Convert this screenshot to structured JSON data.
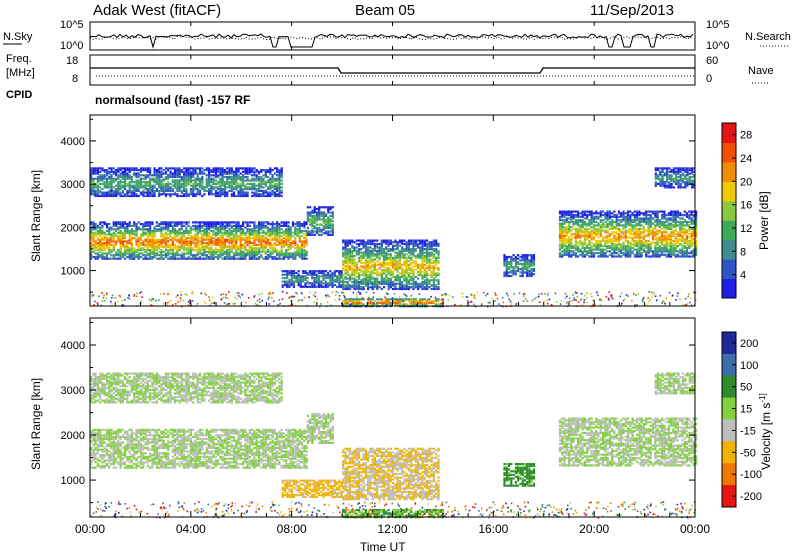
{
  "header": {
    "station": "Adak West (fitACF)",
    "beam": "Beam 05",
    "date": "11/Sep/2013"
  },
  "noise_panel": {
    "left_label": "N.Sky",
    "right_label": "N.Search",
    "left_ticks": [
      "10^5",
      "10^0"
    ],
    "right_ticks": [
      "10^5",
      "10^0"
    ]
  },
  "freq_panel": {
    "left_label_1": "Freq.",
    "left_label_2": "[MHz]",
    "left_ticks": [
      "18",
      "8"
    ],
    "right_ticks": [
      "60",
      "0"
    ],
    "right_label": "Nave",
    "cpid_label": "CPID",
    "cpid_text": "normalsound (fast) -157 RF"
  },
  "chart_data": [
    {
      "type": "heatmap",
      "title": "",
      "xlabel": "Time UT",
      "ylabel": "Slant Range [km]",
      "x_ticks": [
        "00:00",
        "04:00",
        "08:00",
        "12:00",
        "16:00",
        "20:00",
        "00:00"
      ],
      "x_range_hours": [
        0,
        24
      ],
      "y_ticks": [
        1000,
        2000,
        3000,
        4000
      ],
      "ylim": [
        180,
        4600
      ],
      "colorbar": {
        "label": "Power [dB]",
        "ticks": [
          4,
          8,
          12,
          16,
          20,
          24,
          28
        ],
        "range": [
          0,
          30
        ],
        "colors": [
          "#1e1ee6",
          "#2f55c8",
          "#3f8c8c",
          "#3faa5a",
          "#8cc83f",
          "#f0c800",
          "#f08c00",
          "#f05000",
          "#e61414"
        ]
      },
      "echo_regions": [
        {
          "t0": 0.0,
          "t1": 8.6,
          "r0": 1300,
          "r1": 2150,
          "value": 24
        },
        {
          "t0": 8.6,
          "t1": 9.6,
          "r0": 1850,
          "r1": 2500,
          "value": 14
        },
        {
          "t0": 0.0,
          "t1": 7.6,
          "r0": 2750,
          "r1": 3400,
          "value": 12
        },
        {
          "t0": 7.6,
          "t1": 10.0,
          "r0": 650,
          "r1": 1050,
          "value": 10
        },
        {
          "t0": 10.0,
          "t1": 13.8,
          "r0": 600,
          "r1": 1750,
          "value": 20
        },
        {
          "t0": 10.0,
          "t1": 14.0,
          "r0": 200,
          "r1": 400,
          "value": 26
        },
        {
          "t0": 16.4,
          "t1": 17.6,
          "r0": 900,
          "r1": 1400,
          "value": 12
        },
        {
          "t0": 18.6,
          "t1": 24.0,
          "r0": 1350,
          "r1": 2400,
          "value": 22
        },
        {
          "t0": 22.4,
          "t1": 24.0,
          "r0": 2950,
          "r1": 3400,
          "value": 10
        }
      ]
    },
    {
      "type": "heatmap",
      "title": "",
      "xlabel": "Time UT",
      "ylabel": "Slant Range [km]",
      "x_ticks": [
        "00:00",
        "04:00",
        "08:00",
        "12:00",
        "16:00",
        "20:00",
        "00:00"
      ],
      "x_range_hours": [
        0,
        24
      ],
      "y_ticks": [
        1000,
        2000,
        3000,
        4000
      ],
      "ylim": [
        180,
        4600
      ],
      "colorbar": {
        "label": "Velocity [m s^-1]",
        "ticks": [
          200,
          100,
          50,
          15,
          -15,
          -50,
          -100,
          -200
        ],
        "colors": [
          "#1e2896",
          "#3c6eaa",
          "#2d8c2d",
          "#82d23c",
          "#bebebe",
          "#f0b400",
          "#f07800",
          "#e61414"
        ]
      },
      "echo_regions": [
        {
          "t0": 0.0,
          "t1": 8.6,
          "r0": 1300,
          "r1": 2150,
          "value": 0
        },
        {
          "t0": 8.6,
          "t1": 9.6,
          "r0": 1850,
          "r1": 2500,
          "value": 0
        },
        {
          "t0": 0.0,
          "t1": 7.6,
          "r0": 2750,
          "r1": 3400,
          "value": 0
        },
        {
          "t0": 7.6,
          "t1": 10.0,
          "r0": 650,
          "r1": 1050,
          "value": -40
        },
        {
          "t0": 10.0,
          "t1": 13.8,
          "r0": 600,
          "r1": 1750,
          "value": -30
        },
        {
          "t0": 10.0,
          "t1": 14.0,
          "r0": 200,
          "r1": 400,
          "value": 30
        },
        {
          "t0": 16.4,
          "t1": 17.6,
          "r0": 900,
          "r1": 1400,
          "value": 40
        },
        {
          "t0": 18.6,
          "t1": 24.0,
          "r0": 1350,
          "r1": 2400,
          "value": 0
        },
        {
          "t0": 22.4,
          "t1": 24.0,
          "r0": 2950,
          "r1": 3400,
          "value": 0
        }
      ]
    }
  ]
}
